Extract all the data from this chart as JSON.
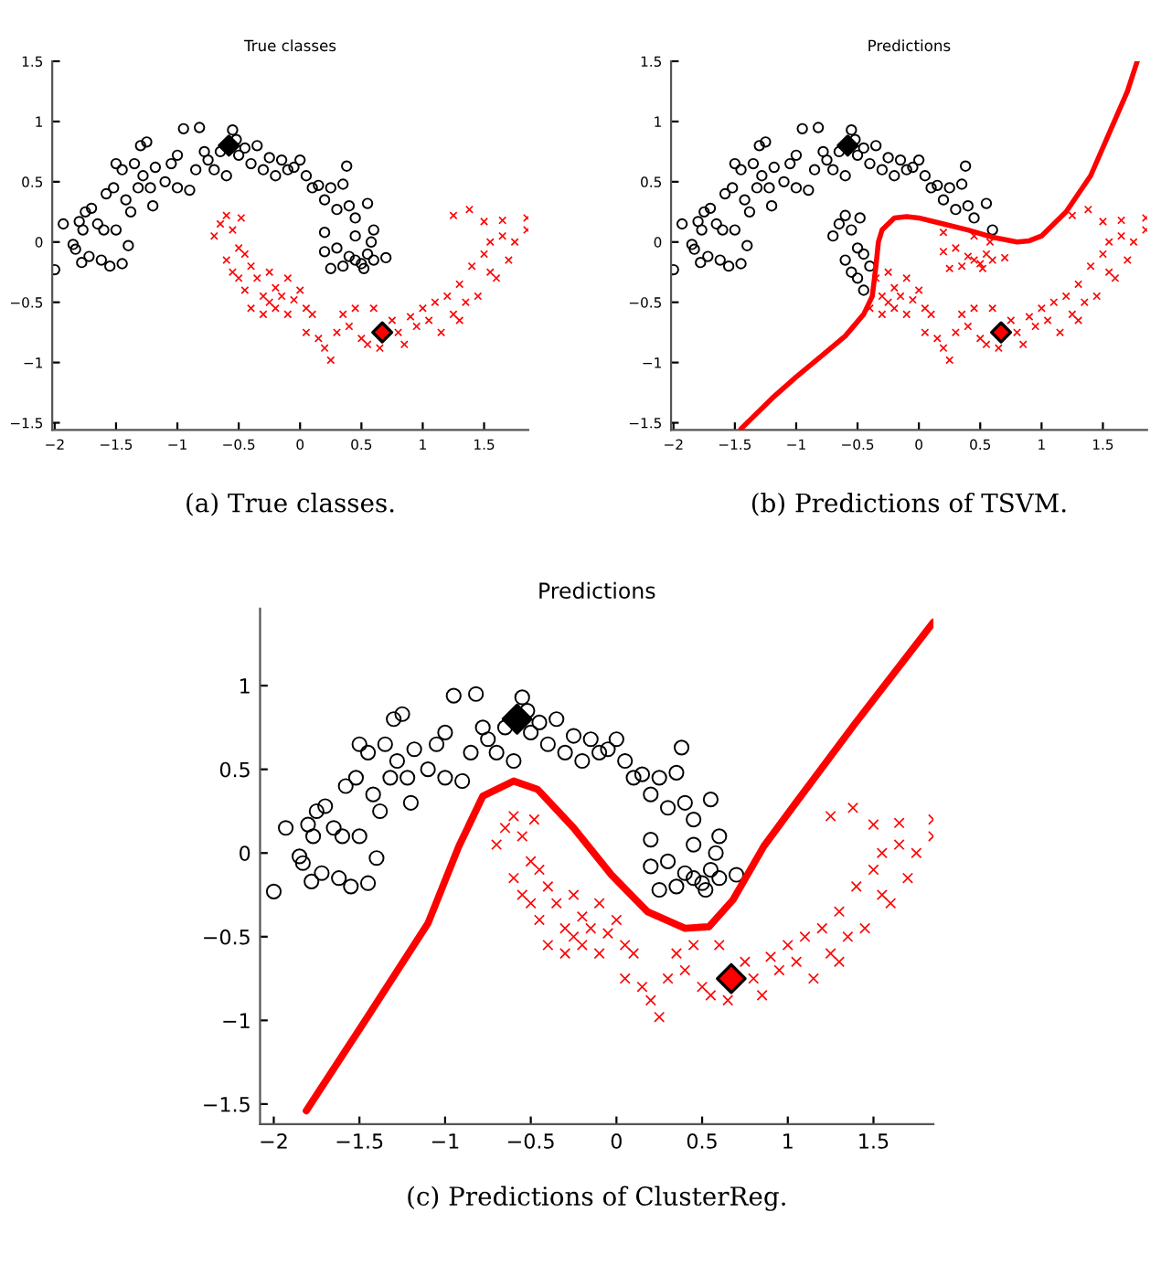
{
  "chart_data": [
    {
      "type": "scatter",
      "title": "True classes",
      "annotations": [
        "(a) True classes."
      ],
      "xlim": [
        -2.02,
        1.86
      ],
      "ylim": [
        -1.56,
        1.5
      ],
      "xticks": [
        -2,
        -1.5,
        -1,
        -0.5,
        0,
        0.5,
        1,
        1.5
      ],
      "yticks": [
        -1.5,
        -1,
        -0.5,
        0,
        0.5,
        1,
        1.5
      ],
      "grid": false,
      "legend": false,
      "series": [
        {
          "type": "scatter",
          "marker": "circle",
          "color": "#000000",
          "x": [
            -2.0,
            -1.93,
            -1.85,
            -1.83,
            -1.8,
            -1.78,
            -1.77,
            -1.75,
            -1.72,
            -1.7,
            -1.65,
            -1.62,
            -1.6,
            -1.58,
            -1.55,
            -1.52,
            -1.5,
            -1.5,
            -1.45,
            -1.45,
            -1.42,
            -1.4,
            -1.38,
            -1.35,
            -1.32,
            -1.3,
            -1.28,
            -1.25,
            -1.22,
            -1.2,
            -1.18,
            -1.1,
            -1.05,
            -1.0,
            -1.0,
            -0.95,
            -0.9,
            -0.85,
            -0.82,
            -0.78,
            -0.75,
            -0.7,
            -0.65,
            -0.6,
            -0.55,
            -0.52,
            -0.5,
            -0.45,
            -0.4,
            -0.35,
            -0.3,
            -0.25,
            -0.2,
            -0.15,
            -0.1,
            -0.05,
            0.0,
            0.05,
            0.1,
            0.15,
            0.2,
            0.25,
            0.3,
            0.35,
            0.38,
            0.4,
            0.45,
            0.55,
            0.6,
            0.58,
            0.55,
            0.5,
            0.45,
            0.4,
            0.35,
            0.3,
            0.25,
            0.2,
            0.2,
            0.45,
            0.6,
            0.7,
            0.52
          ],
          "values": [
            -0.23,
            0.15,
            -0.02,
            -0.06,
            0.17,
            -0.17,
            0.1,
            0.25,
            -0.12,
            0.28,
            0.15,
            -0.15,
            0.1,
            0.4,
            -0.2,
            0.45,
            0.1,
            0.65,
            0.6,
            -0.18,
            0.35,
            -0.03,
            0.25,
            0.65,
            0.45,
            0.8,
            0.55,
            0.83,
            0.45,
            0.3,
            0.62,
            0.5,
            0.65,
            0.72,
            0.45,
            0.94,
            0.43,
            0.6,
            0.95,
            0.75,
            0.68,
            0.6,
            0.75,
            0.55,
            0.93,
            0.85,
            0.72,
            0.78,
            0.65,
            0.8,
            0.6,
            0.7,
            0.55,
            0.68,
            0.6,
            0.62,
            0.68,
            0.55,
            0.45,
            0.47,
            0.35,
            0.45,
            0.27,
            0.48,
            0.63,
            0.3,
            0.2,
            0.32,
            0.1,
            0.0,
            -0.1,
            -0.18,
            -0.15,
            -0.12,
            -0.2,
            -0.05,
            -0.22,
            0.08,
            -0.08,
            0.05,
            -0.15,
            -0.13,
            -0.22
          ]
        },
        {
          "type": "scatter",
          "marker": "cross",
          "color": "#ff0000",
          "x": [
            -0.7,
            -0.65,
            -0.6,
            -0.55,
            -0.5,
            -0.48,
            -0.6,
            -0.55,
            -0.5,
            -0.45,
            -0.45,
            -0.4,
            -0.4,
            -0.35,
            -0.3,
            -0.3,
            -0.25,
            -0.25,
            -0.2,
            -0.2,
            -0.15,
            -0.1,
            -0.1,
            -0.05,
            0.0,
            0.05,
            0.05,
            0.1,
            0.15,
            0.2,
            0.25,
            0.3,
            0.35,
            0.4,
            0.45,
            0.5,
            0.55,
            0.6,
            0.65,
            0.75,
            0.8,
            0.85,
            0.9,
            0.95,
            1.0,
            1.05,
            1.1,
            1.15,
            1.2,
            1.25,
            1.3,
            1.35,
            1.4,
            1.45,
            1.5,
            1.55,
            1.6,
            1.65,
            1.7,
            1.75,
            1.85,
            1.85,
            1.38,
            1.25,
            1.5,
            1.65,
            1.3,
            1.55
          ],
          "values": [
            0.05,
            0.15,
            0.22,
            0.1,
            -0.05,
            0.2,
            -0.15,
            -0.25,
            -0.3,
            -0.1,
            -0.4,
            -0.2,
            -0.55,
            -0.3,
            -0.45,
            -0.6,
            -0.25,
            -0.5,
            -0.38,
            -0.55,
            -0.45,
            -0.6,
            -0.3,
            -0.48,
            -0.4,
            -0.55,
            -0.75,
            -0.6,
            -0.8,
            -0.88,
            -0.98,
            -0.75,
            -0.6,
            -0.7,
            -0.55,
            -0.8,
            -0.85,
            -0.55,
            -0.88,
            -0.65,
            -0.75,
            -0.85,
            -0.62,
            -0.7,
            -0.55,
            -0.65,
            -0.5,
            -0.75,
            -0.45,
            -0.6,
            -0.35,
            -0.5,
            -0.2,
            -0.45,
            -0.1,
            0.0,
            -0.3,
            0.05,
            -0.15,
            0.0,
            0.2,
            0.1,
            0.27,
            0.22,
            0.17,
            0.18,
            -0.65,
            -0.25
          ]
        },
        {
          "type": "scatter",
          "marker": "diamond",
          "color": "#000000",
          "x": [
            -0.58
          ],
          "values": [
            0.8
          ]
        },
        {
          "type": "scatter",
          "marker": "diamond",
          "color": "#ff0000",
          "x": [
            0.67
          ],
          "values": [
            -0.75
          ]
        }
      ]
    },
    {
      "type": "scatter",
      "title": "Predictions",
      "annotations": [
        "(b) Predictions of TSVM."
      ],
      "xlim": [
        -2.02,
        1.86
      ],
      "ylim": [
        -1.56,
        1.5
      ],
      "xticks": [
        -2,
        -1.5,
        -1,
        -0.5,
        0,
        0.5,
        1,
        1.5
      ],
      "yticks": [
        -1.5,
        -1,
        -0.5,
        0,
        0.5,
        1,
        1.5
      ],
      "grid": false,
      "legend": false,
      "series": [
        {
          "type": "scatter",
          "marker": "circle",
          "color": "#000000",
          "x": [
            -2.0,
            -1.93,
            -1.85,
            -1.83,
            -1.8,
            -1.78,
            -1.77,
            -1.75,
            -1.72,
            -1.7,
            -1.65,
            -1.62,
            -1.6,
            -1.58,
            -1.55,
            -1.52,
            -1.5,
            -1.5,
            -1.45,
            -1.45,
            -1.42,
            -1.4,
            -1.38,
            -1.35,
            -1.32,
            -1.3,
            -1.28,
            -1.25,
            -1.22,
            -1.2,
            -1.18,
            -1.1,
            -1.05,
            -1.0,
            -1.0,
            -0.95,
            -0.9,
            -0.85,
            -0.82,
            -0.78,
            -0.75,
            -0.7,
            -0.65,
            -0.6,
            -0.55,
            -0.52,
            -0.5,
            -0.45,
            -0.4,
            -0.35,
            -0.3,
            -0.25,
            -0.2,
            -0.15,
            -0.1,
            -0.05,
            0.0,
            0.05,
            0.1,
            0.15,
            0.2,
            0.25,
            0.3,
            0.35,
            0.38,
            0.4,
            0.45,
            0.55,
            0.6,
            -0.7,
            -0.65,
            -0.6,
            -0.55,
            -0.5,
            -0.48,
            -0.6,
            -0.55,
            -0.5,
            -0.45,
            -0.45,
            -0.4
          ],
          "values": [
            -0.23,
            0.15,
            -0.02,
            -0.06,
            0.17,
            -0.17,
            0.1,
            0.25,
            -0.12,
            0.28,
            0.15,
            -0.15,
            0.1,
            0.4,
            -0.2,
            0.45,
            0.1,
            0.65,
            0.6,
            -0.18,
            0.35,
            -0.03,
            0.25,
            0.65,
            0.45,
            0.8,
            0.55,
            0.83,
            0.45,
            0.3,
            0.62,
            0.5,
            0.65,
            0.72,
            0.45,
            0.94,
            0.43,
            0.6,
            0.95,
            0.75,
            0.68,
            0.6,
            0.75,
            0.55,
            0.93,
            0.85,
            0.72,
            0.78,
            0.65,
            0.8,
            0.6,
            0.7,
            0.55,
            0.68,
            0.6,
            0.62,
            0.68,
            0.55,
            0.45,
            0.47,
            0.35,
            0.45,
            0.27,
            0.48,
            0.63,
            0.3,
            0.2,
            0.32,
            0.1,
            0.05,
            0.15,
            0.22,
            0.1,
            -0.05,
            0.2,
            -0.15,
            -0.25,
            -0.3,
            -0.1,
            -0.4,
            -0.2
          ]
        },
        {
          "type": "scatter",
          "marker": "cross",
          "color": "#ff0000",
          "x": [
            -0.4,
            -0.35,
            -0.3,
            -0.3,
            -0.25,
            -0.25,
            -0.2,
            -0.2,
            -0.15,
            -0.1,
            -0.1,
            -0.05,
            0.0,
            0.05,
            0.05,
            0.1,
            0.15,
            0.2,
            0.25,
            0.3,
            0.35,
            0.4,
            0.45,
            0.5,
            0.55,
            0.6,
            0.65,
            0.75,
            0.8,
            0.85,
            0.9,
            0.95,
            1.0,
            1.05,
            1.1,
            1.15,
            1.2,
            1.25,
            1.3,
            1.35,
            1.4,
            1.45,
            1.5,
            1.55,
            1.6,
            1.65,
            1.7,
            1.75,
            1.85,
            1.85,
            1.38,
            1.25,
            1.5,
            1.65,
            1.3,
            1.55,
            0.58,
            0.55,
            0.5,
            0.45,
            0.4,
            0.35,
            0.3,
            0.25,
            0.2,
            0.2,
            0.45,
            0.6,
            0.7,
            0.52
          ],
          "values": [
            -0.55,
            -0.3,
            -0.45,
            -0.6,
            -0.25,
            -0.5,
            -0.38,
            -0.55,
            -0.45,
            -0.6,
            -0.3,
            -0.48,
            -0.4,
            -0.55,
            -0.75,
            -0.6,
            -0.8,
            -0.88,
            -0.98,
            -0.75,
            -0.6,
            -0.7,
            -0.55,
            -0.8,
            -0.85,
            -0.55,
            -0.88,
            -0.65,
            -0.75,
            -0.85,
            -0.62,
            -0.7,
            -0.55,
            -0.65,
            -0.5,
            -0.75,
            -0.45,
            -0.6,
            -0.35,
            -0.5,
            -0.2,
            -0.45,
            -0.1,
            0.0,
            -0.3,
            0.05,
            -0.15,
            0.0,
            0.2,
            0.1,
            0.27,
            0.22,
            0.17,
            0.18,
            -0.65,
            -0.25,
            0.0,
            -0.1,
            -0.18,
            -0.15,
            -0.12,
            -0.2,
            -0.05,
            -0.22,
            0.08,
            -0.08,
            0.05,
            -0.15,
            -0.13,
            -0.22
          ]
        },
        {
          "type": "line",
          "marker": "none",
          "line_style": "solid",
          "color": "#ff0000",
          "x": [
            -1.45,
            -1.2,
            -1.0,
            -0.8,
            -0.6,
            -0.45,
            -0.38,
            -0.35,
            -0.33,
            -0.3,
            -0.2,
            -0.1,
            0.0,
            0.2,
            0.4,
            0.6,
            0.8,
            0.9,
            1.0,
            1.2,
            1.4,
            1.55,
            1.7,
            1.78
          ],
          "values": [
            -1.55,
            -1.3,
            -1.12,
            -0.95,
            -0.78,
            -0.6,
            -0.45,
            -0.2,
            0.0,
            0.1,
            0.2,
            0.21,
            0.2,
            0.15,
            0.1,
            0.04,
            0.0,
            0.01,
            0.05,
            0.25,
            0.55,
            0.9,
            1.25,
            1.5
          ]
        },
        {
          "type": "scatter",
          "marker": "diamond",
          "color": "#000000",
          "x": [
            -0.58
          ],
          "values": [
            0.8
          ]
        },
        {
          "type": "scatter",
          "marker": "diamond",
          "color": "#ff0000",
          "x": [
            0.67
          ],
          "values": [
            -0.75
          ]
        }
      ]
    },
    {
      "type": "scatter",
      "title": "Predictions",
      "annotations": [
        "(c) Predictions of ClusterReg."
      ],
      "xlim": [
        -2.08,
        1.85
      ],
      "ylim": [
        -1.62,
        1.46
      ],
      "xticks": [
        -2,
        -1.5,
        -1,
        -0.5,
        0,
        0.5,
        1,
        1.5
      ],
      "yticks": [
        -1.5,
        -1,
        -0.5,
        0,
        0.5,
        1
      ],
      "grid": false,
      "legend": false,
      "series": [
        {
          "type": "scatter",
          "marker": "circle",
          "color": "#000000",
          "x": [
            -2.0,
            -1.93,
            -1.85,
            -1.83,
            -1.8,
            -1.78,
            -1.77,
            -1.75,
            -1.72,
            -1.7,
            -1.65,
            -1.62,
            -1.6,
            -1.58,
            -1.55,
            -1.52,
            -1.5,
            -1.5,
            -1.45,
            -1.45,
            -1.42,
            -1.4,
            -1.38,
            -1.35,
            -1.32,
            -1.3,
            -1.28,
            -1.25,
            -1.22,
            -1.2,
            -1.18,
            -1.1,
            -1.05,
            -1.0,
            -1.0,
            -0.95,
            -0.9,
            -0.85,
            -0.82,
            -0.78,
            -0.75,
            -0.7,
            -0.65,
            -0.6,
            -0.55,
            -0.52,
            -0.5,
            -0.45,
            -0.4,
            -0.35,
            -0.3,
            -0.25,
            -0.2,
            -0.15,
            -0.1,
            -0.05,
            0.0,
            0.05,
            0.1,
            0.15,
            0.2,
            0.25,
            0.3,
            0.35,
            0.38,
            0.4,
            0.45,
            0.55,
            0.6,
            0.58,
            0.55,
            0.5,
            0.45,
            0.4,
            0.35,
            0.3,
            0.25,
            0.2,
            0.2,
            0.45,
            0.6,
            0.7,
            0.52
          ],
          "values": [
            -0.23,
            0.15,
            -0.02,
            -0.06,
            0.17,
            -0.17,
            0.1,
            0.25,
            -0.12,
            0.28,
            0.15,
            -0.15,
            0.1,
            0.4,
            -0.2,
            0.45,
            0.1,
            0.65,
            0.6,
            -0.18,
            0.35,
            -0.03,
            0.25,
            0.65,
            0.45,
            0.8,
            0.55,
            0.83,
            0.45,
            0.3,
            0.62,
            0.5,
            0.65,
            0.72,
            0.45,
            0.94,
            0.43,
            0.6,
            0.95,
            0.75,
            0.68,
            0.6,
            0.75,
            0.55,
            0.93,
            0.85,
            0.72,
            0.78,
            0.65,
            0.8,
            0.6,
            0.7,
            0.55,
            0.68,
            0.6,
            0.62,
            0.68,
            0.55,
            0.45,
            0.47,
            0.35,
            0.45,
            0.27,
            0.48,
            0.63,
            0.3,
            0.2,
            0.32,
            0.1,
            0.0,
            -0.1,
            -0.18,
            -0.15,
            -0.12,
            -0.2,
            -0.05,
            -0.22,
            0.08,
            -0.08,
            0.05,
            -0.15,
            -0.13,
            -0.22
          ]
        },
        {
          "type": "scatter",
          "marker": "cross",
          "color": "#ff0000",
          "x": [
            -0.7,
            -0.65,
            -0.6,
            -0.55,
            -0.5,
            -0.48,
            -0.6,
            -0.55,
            -0.5,
            -0.45,
            -0.45,
            -0.4,
            -0.4,
            -0.35,
            -0.3,
            -0.3,
            -0.25,
            -0.25,
            -0.2,
            -0.2,
            -0.15,
            -0.1,
            -0.1,
            -0.05,
            0.0,
            0.05,
            0.05,
            0.1,
            0.15,
            0.2,
            0.25,
            0.3,
            0.35,
            0.4,
            0.45,
            0.5,
            0.55,
            0.6,
            0.65,
            0.75,
            0.8,
            0.85,
            0.9,
            0.95,
            1.0,
            1.05,
            1.1,
            1.15,
            1.2,
            1.25,
            1.3,
            1.35,
            1.4,
            1.45,
            1.5,
            1.55,
            1.6,
            1.65,
            1.7,
            1.75,
            1.85,
            1.85,
            1.38,
            1.25,
            1.5,
            1.65,
            1.3,
            1.55
          ],
          "values": [
            0.05,
            0.15,
            0.22,
            0.1,
            -0.05,
            0.2,
            -0.15,
            -0.25,
            -0.3,
            -0.1,
            -0.4,
            -0.2,
            -0.55,
            -0.3,
            -0.45,
            -0.6,
            -0.25,
            -0.5,
            -0.38,
            -0.55,
            -0.45,
            -0.6,
            -0.3,
            -0.48,
            -0.4,
            -0.55,
            -0.75,
            -0.6,
            -0.8,
            -0.88,
            -0.98,
            -0.75,
            -0.6,
            -0.7,
            -0.55,
            -0.8,
            -0.85,
            -0.55,
            -0.88,
            -0.65,
            -0.75,
            -0.85,
            -0.62,
            -0.7,
            -0.55,
            -0.65,
            -0.5,
            -0.75,
            -0.45,
            -0.6,
            -0.35,
            -0.5,
            -0.2,
            -0.45,
            -0.1,
            0.0,
            -0.3,
            0.05,
            -0.15,
            0.0,
            0.2,
            0.1,
            0.27,
            0.22,
            0.17,
            0.18,
            -0.65,
            -0.25
          ]
        },
        {
          "type": "line",
          "marker": "none",
          "line_style": "solid",
          "color": "#ff0000",
          "x": [
            -1.81,
            -1.46,
            -1.1,
            -0.92,
            -0.78,
            -0.6,
            -0.46,
            -0.25,
            -0.03,
            0.18,
            0.4,
            0.54,
            0.68,
            0.86,
            1.04,
            1.39,
            1.85
          ],
          "values": [
            -1.54,
            -0.99,
            -0.42,
            0.04,
            0.34,
            0.43,
            0.38,
            0.15,
            -0.13,
            -0.35,
            -0.45,
            -0.44,
            -0.28,
            0.04,
            0.29,
            0.77,
            1.38
          ]
        },
        {
          "type": "scatter",
          "marker": "diamond",
          "color": "#000000",
          "x": [
            -0.58
          ],
          "values": [
            0.8
          ]
        },
        {
          "type": "scatter",
          "marker": "diamond",
          "color": "#ff0000",
          "x": [
            0.67
          ],
          "values": [
            -0.75
          ]
        }
      ]
    }
  ]
}
